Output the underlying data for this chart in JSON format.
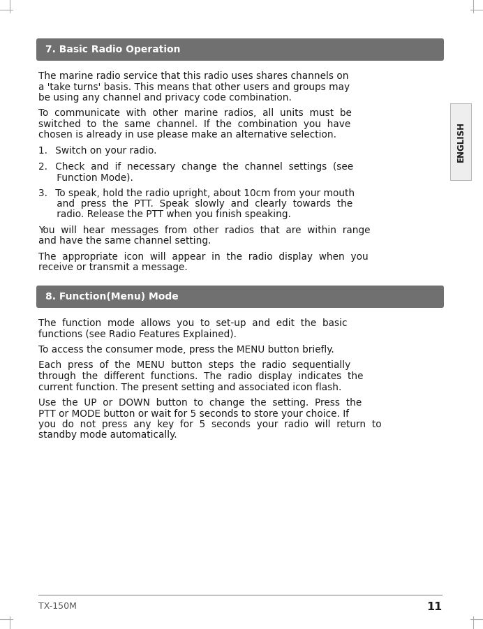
{
  "page_bg": "#ffffff",
  "page_number": "11",
  "footer_left": "TX-150M",
  "side_label": "ENGLISH",
  "section1_title": "7. Basic Radio Operation",
  "section1_header_bg": "#707070",
  "section1_header_text_color": "#ffffff",
  "section2_title": "8. Function(Menu) Mode",
  "section2_header_bg": "#707070",
  "section2_header_text_color": "#ffffff",
  "body_text_color": "#1a1a1a",
  "footer_text_color": "#555555",
  "body_font_size": 9.8,
  "title_font_size": 10.0,
  "footer_font_size": 9.0,
  "pagenum_font_size": 11.5,
  "side_font_size": 8.5,
  "section1_lines": [
    "The marine radio service that this radio uses shares channels on",
    "a 'take turns' basis. This means that other users and groups may",
    "be using any channel and privacy code combination.",
    "",
    "To  communicate  with  other  marine  radios,  all  units  must  be",
    "switched  to  the  same  channel.  If  the  combination  you  have",
    "chosen is already in use please make an alternative selection.",
    "",
    "1.  Switch on your radio.",
    "",
    "2.  Check  and  if  necessary  change  the  channel  settings  (see",
    "      Function Mode).",
    "",
    "3.  To speak, hold the radio upright, about 10cm from your mouth",
    "      and  press  the  PTT.  Speak  slowly  and  clearly  towards  the",
    "      radio. Release the PTT when you finish speaking.",
    "",
    "You  will  hear  messages  from  other  radios  that  are  within  range",
    "and have the same channel setting.",
    "",
    "The  appropriate  icon  will  appear  in  the  radio  display  when  you",
    "receive or transmit a message."
  ],
  "section2_lines": [
    "The  function  mode  allows  you  to  set-up  and  edit  the  basic",
    "functions (see Radio Features Explained).",
    "",
    "To access the consumer mode, press the MENU button briefly.",
    "",
    "Each  press  of  the  MENU  button  steps  the  radio  sequentially",
    "through  the  different  functions.  The  radio  display  indicates  the",
    "current function. The present setting and associated icon flash.",
    "",
    "Use  the  UP  or  DOWN  button  to  change  the  setting.  Press  the",
    "PTT or MODE button or wait for 5 seconds to store your choice. If",
    "you  do  not  press  any  key  for  5  seconds  your  radio  will  return  to",
    "standby mode automatically."
  ],
  "corner_color": "#aaaaaa",
  "footer_line_color": "#888888"
}
